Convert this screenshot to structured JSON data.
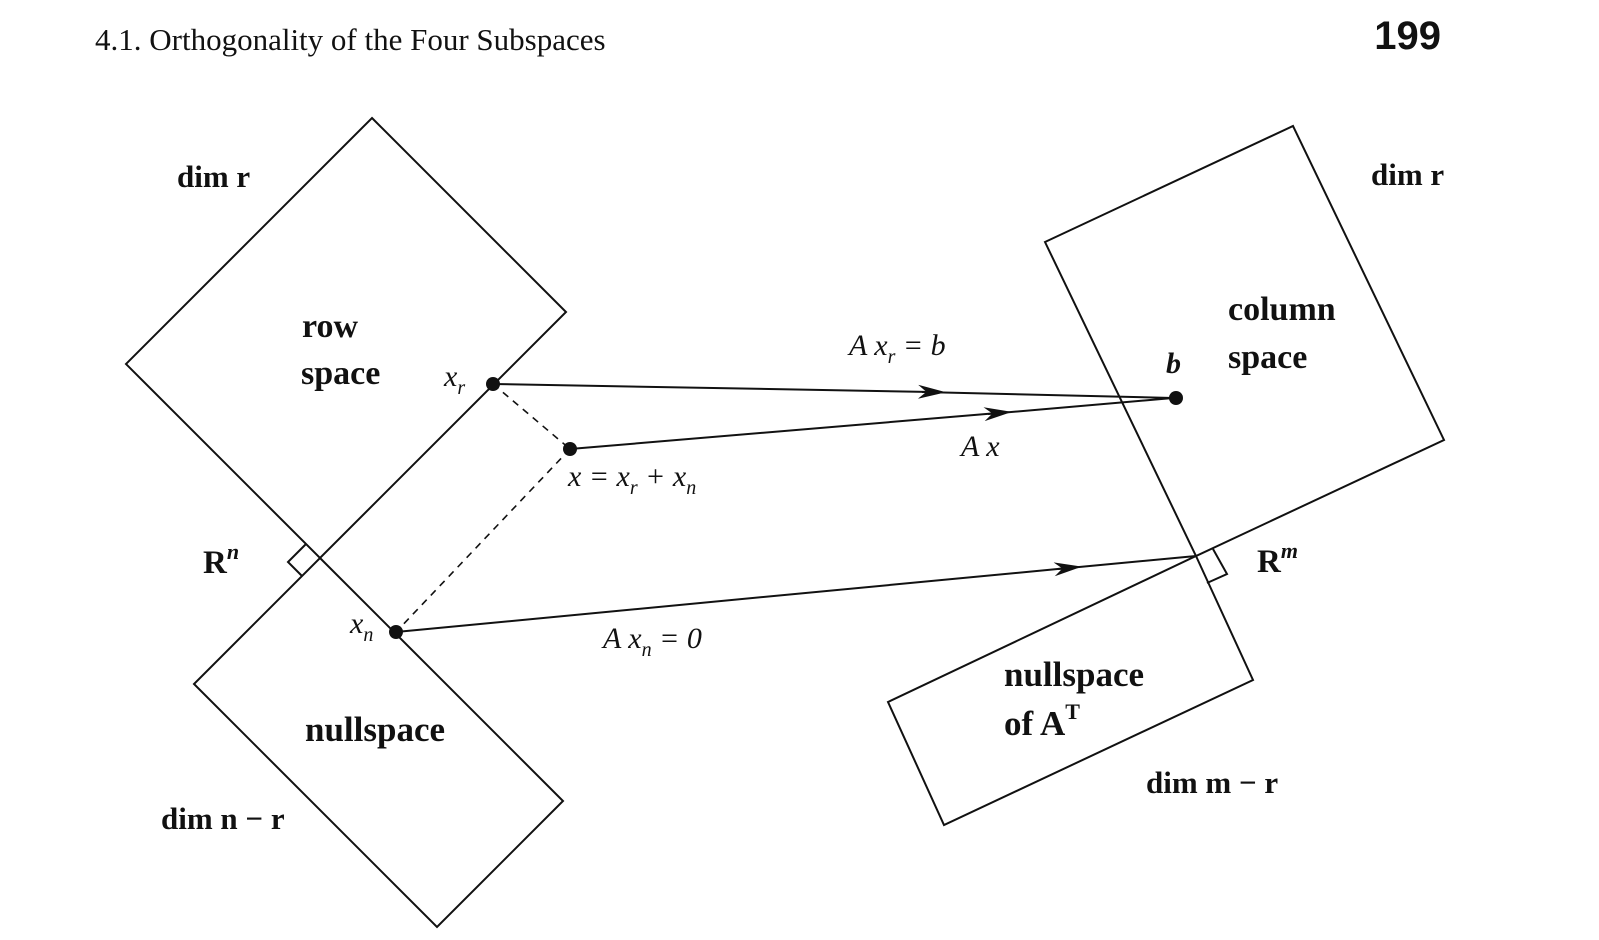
{
  "header": {
    "section": "4.1.  Orthogonality of the Four Subspaces",
    "page_number": "199"
  },
  "left": {
    "dim_row": "dim r",
    "row_space_line1": "row",
    "row_space_line2": "space",
    "rn_base": "R",
    "rn_sup": "n",
    "nullspace": "nullspace",
    "dim_null": "dim n − r"
  },
  "right": {
    "dim_col": "dim r",
    "column_line1": "column",
    "column_line2": "space",
    "rm_base": "R",
    "rm_sup": "m",
    "left_null_line1": "nullspace",
    "left_null_line2": "of A",
    "left_null_sup": "T",
    "dim_left_null": "dim m − r"
  },
  "points": {
    "xr": "x",
    "xr_sub": "r",
    "xn": "x",
    "xn_sub": "n",
    "x": "x = x",
    "x_sub1": "r",
    "x_plus": " + x",
    "x_sub2": "n",
    "b": "b"
  },
  "arrows": {
    "axr": "A x",
    "axr_sub": "r",
    "axr_rhs": " = b",
    "ax": "A x",
    "axn": "A x",
    "axn_sub": "n",
    "axn_rhs": " = 0"
  }
}
